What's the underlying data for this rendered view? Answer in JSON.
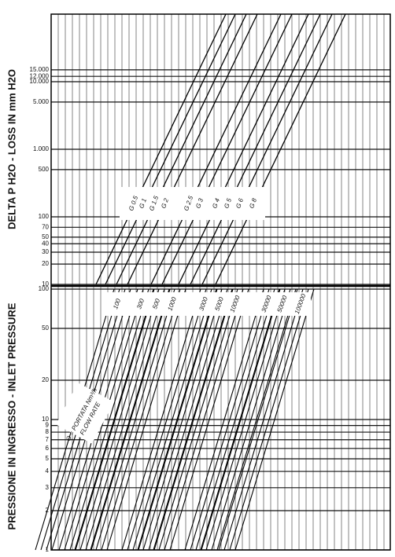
{
  "chart_data": {
    "type": "nomogram",
    "axis_labels": {
      "upper": "DELTA P H2O - LOSS IN mm H2O",
      "lower": "PRESSIONE IN INGRESSO - INLET PRESSURE"
    },
    "upper_scale": {
      "log": true,
      "ylim": [
        10,
        100000
      ],
      "yticks": [
        {
          "value": 15000,
          "label": "15.000"
        },
        {
          "value": 12000,
          "label": "12.000"
        },
        {
          "value": 10000,
          "label": "10.000"
        },
        {
          "value": 5000,
          "label": "5.000"
        },
        {
          "value": 1000,
          "label": "1.000"
        },
        500,
        100,
        70,
        50,
        40,
        30,
        20,
        10
      ]
    },
    "lower_scale": {
      "log": true,
      "ylim": [
        1,
        100
      ],
      "yticks": [
        1,
        2,
        3,
        4,
        5,
        6,
        7,
        8,
        9,
        10,
        20,
        50,
        100
      ]
    },
    "gauge_labels": [
      "G 0.5",
      "G 1",
      "G 1.5",
      "G 2",
      "G 2.5",
      "G 3",
      "G 4",
      "G 5",
      "G 6",
      "G 8"
    ],
    "flow_rates": [
      100,
      300,
      500,
      1000,
      3000,
      5000,
      10000,
      30000,
      50000,
      100000
    ],
    "annotation": {
      "line1": "Q = PORTATA Nm³/h",
      "line2": "FLOW RATE"
    }
  }
}
